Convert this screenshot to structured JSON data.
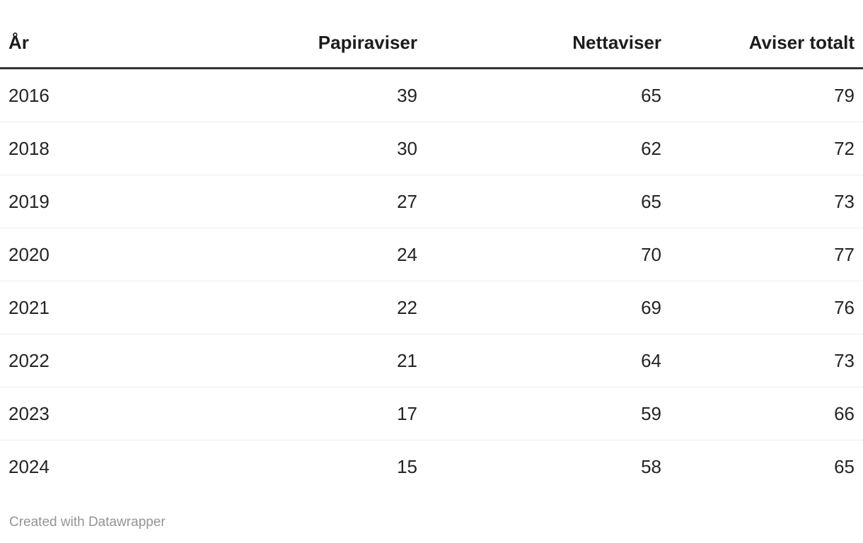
{
  "colors": {
    "background": "#ffffff",
    "header_text": "#1d1d1d",
    "body_text": "#242424",
    "header_border": "#333333",
    "row_separator": "#eeeeee",
    "attribution_text": "#949494"
  },
  "table": {
    "columns": [
      {
        "label": "År",
        "align": "left"
      },
      {
        "label": "Papiraviser",
        "align": "right"
      },
      {
        "label": "Nettaviser",
        "align": "right"
      },
      {
        "label": "Aviser totalt",
        "align": "right"
      }
    ],
    "rows": [
      [
        "2016",
        "39",
        "65",
        "79"
      ],
      [
        "2018",
        "30",
        "62",
        "72"
      ],
      [
        "2019",
        "27",
        "65",
        "73"
      ],
      [
        "2020",
        "24",
        "70",
        "77"
      ],
      [
        "2021",
        "22",
        "69",
        "76"
      ],
      [
        "2022",
        "21",
        "64",
        "73"
      ],
      [
        "2023",
        "17",
        "59",
        "66"
      ],
      [
        "2024",
        "15",
        "58",
        "65"
      ]
    ]
  },
  "footer": {
    "attribution": "Created with Datawrapper"
  },
  "chart_data": {
    "type": "table",
    "columns": [
      "År",
      "Papiraviser",
      "Nettaviser",
      "Aviser totalt"
    ],
    "rows": [
      [
        2016,
        39,
        65,
        79
      ],
      [
        2018,
        30,
        62,
        72
      ],
      [
        2019,
        27,
        65,
        73
      ],
      [
        2020,
        24,
        70,
        77
      ],
      [
        2021,
        22,
        69,
        76
      ],
      [
        2022,
        21,
        64,
        73
      ],
      [
        2023,
        17,
        59,
        66
      ],
      [
        2024,
        15,
        58,
        65
      ]
    ],
    "title": "",
    "notes": "Datawrapper table, first column left-aligned years, numeric columns right-aligned"
  }
}
